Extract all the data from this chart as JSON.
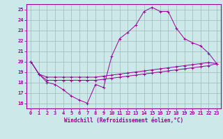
{
  "xlabel": "Windchill (Refroidissement éolien,°C)",
  "background_color": "#cce8e8",
  "line_color": "#990099",
  "xlim": [
    -0.5,
    23.5
  ],
  "ylim": [
    15.5,
    25.5
  ],
  "xticks": [
    0,
    1,
    2,
    3,
    4,
    5,
    6,
    7,
    8,
    9,
    10,
    11,
    12,
    13,
    14,
    15,
    16,
    17,
    18,
    19,
    20,
    21,
    22,
    23
  ],
  "yticks": [
    16,
    17,
    18,
    19,
    20,
    21,
    22,
    23,
    24,
    25
  ],
  "grid_color": "#9bbcbc",
  "main_y": [
    20.0,
    18.8,
    18.0,
    17.8,
    17.3,
    16.7,
    16.3,
    16.0,
    17.8,
    17.5,
    20.5,
    22.2,
    22.8,
    23.5,
    24.8,
    25.2,
    24.8,
    24.8,
    23.2,
    22.2,
    21.8,
    21.5,
    20.8,
    19.8
  ],
  "line1_y": [
    20.0,
    18.8,
    18.5,
    18.5,
    18.5,
    18.5,
    18.5,
    18.5,
    18.5,
    18.6,
    18.7,
    18.8,
    18.9,
    19.0,
    19.1,
    19.2,
    19.3,
    19.4,
    19.5,
    19.6,
    19.7,
    19.8,
    19.9,
    19.8
  ],
  "line2_y": [
    20.0,
    18.8,
    18.2,
    18.2,
    18.2,
    18.2,
    18.2,
    18.2,
    18.2,
    18.3,
    18.4,
    18.5,
    18.6,
    18.7,
    18.8,
    18.9,
    19.0,
    19.1,
    19.2,
    19.3,
    19.4,
    19.5,
    19.6,
    19.8
  ]
}
